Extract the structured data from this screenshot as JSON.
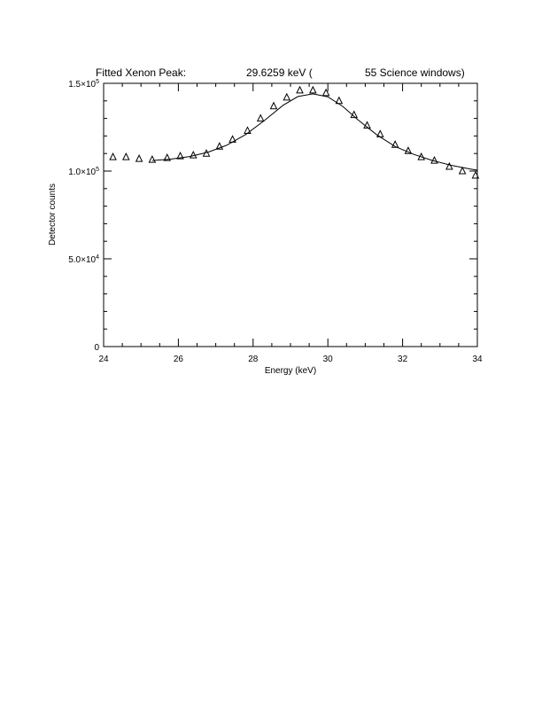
{
  "chart_data": {
    "type": "scatter",
    "title_parts": [
      "Fitted Xenon Peak:",
      "29.6259 keV (",
      "55 Science windows)"
    ],
    "xlabel": "Energy (keV)",
    "ylabel": "Detector counts",
    "xlim": [
      24,
      34
    ],
    "ylim": [
      0,
      150000
    ],
    "x_ticks": [
      24,
      26,
      28,
      30,
      32,
      34
    ],
    "x_tick_labels": [
      "24",
      "26",
      "28",
      "30",
      "32",
      "34"
    ],
    "y_ticks": [
      0,
      50000,
      100000,
      150000
    ],
    "y_tick_labels": [
      {
        "mant": "0",
        "exp": ""
      },
      {
        "mant": "5.0×10",
        "exp": "4"
      },
      {
        "mant": "1.0×10",
        "exp": "5"
      },
      {
        "mant": "1.5×10",
        "exp": "5"
      }
    ],
    "grid": false,
    "series": [
      {
        "marker": "triangle",
        "x": [
          24.25,
          24.6,
          24.95,
          25.3,
          25.7,
          26.05,
          26.4,
          26.75,
          27.1,
          27.45,
          27.85,
          28.2,
          28.55,
          28.9,
          29.25,
          29.6,
          29.95,
          30.3,
          30.7,
          31.05,
          31.4,
          31.8,
          32.15,
          32.5,
          32.85,
          33.25,
          33.6,
          33.95
        ],
        "y": [
          108000,
          108000,
          107000,
          106500,
          107500,
          108500,
          109000,
          110000,
          114000,
          118000,
          123000,
          130000,
          137000,
          142000,
          146000,
          146000,
          144500,
          140000,
          132000,
          126000,
          121000,
          115000,
          111500,
          108000,
          106000,
          102500,
          100000,
          97500
        ]
      },
      {
        "marker": "line",
        "x": [
          25.3,
          25.8,
          26.3,
          26.8,
          27.3,
          27.8,
          28.3,
          28.8,
          29.2,
          29.6,
          30.0,
          30.4,
          30.8,
          31.3,
          31.8,
          32.3,
          32.8,
          33.3,
          33.8,
          34.0
        ],
        "y": [
          106000,
          106800,
          108300,
          110800,
          114800,
          120800,
          128800,
          137500,
          142500,
          144000,
          142300,
          136800,
          129300,
          120800,
          114000,
          109500,
          106000,
          103300,
          101200,
          100500
        ]
      }
    ]
  }
}
